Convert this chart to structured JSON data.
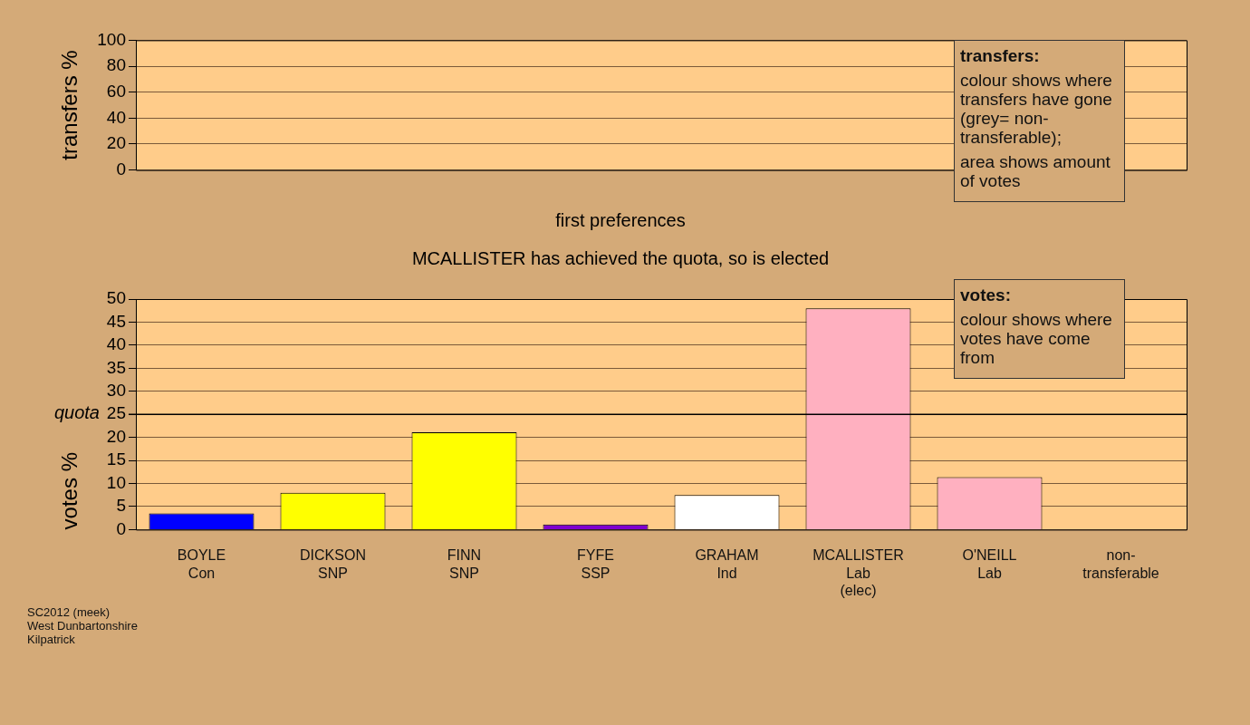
{
  "chart_data": [
    {
      "type": "bar",
      "ylabel": "transfers %",
      "categories": [
        null,
        null,
        null,
        null,
        null,
        null,
        null,
        null
      ],
      "values": [
        null,
        null,
        null,
        null,
        null,
        null,
        null,
        null
      ],
      "ylim": [
        0,
        100
      ],
      "yticks": [
        0,
        20,
        40,
        60,
        80,
        100
      ],
      "grid": "y",
      "tick_labels": "y",
      "annotations": [
        "transfers:\ncolour shows where transfers have gone (grey= non-transferable);\narea shows amount of votes"
      ]
    },
    {
      "type": "bar",
      "title": "first preferences",
      "subtitle": "MCALLISTER has achieved the quota, so is elected",
      "ylabel": "votes %",
      "categories": [
        "BOYLE\nCon",
        "DICKSON\nSNP",
        "FINN\nSNP",
        "FYFE\nSSP",
        "GRAHAM\nInd",
        "MCALLISTER\nLab\n(elec)",
        "O'NEILL\nLab",
        "non-\ntransferable"
      ],
      "values": [
        3.5,
        8.0,
        21.1,
        1.1,
        7.5,
        48.0,
        11.4,
        0
      ],
      "colors": [
        "#0000ff",
        "#ffff00",
        "#ffff00",
        "#8000d0",
        "#ffffff",
        "#ffb0c0",
        "#ffb0c0",
        "#bebebe"
      ],
      "ylim": [
        0,
        50
      ],
      "yticks": [
        0,
        5,
        10,
        15,
        20,
        25,
        30,
        35,
        40,
        45,
        50
      ],
      "grid": "y",
      "ref_lines": [
        {
          "axis": "y",
          "value": 25,
          "label": "quota"
        }
      ],
      "annotations": [
        "votes:\ncolour shows where votes have come from",
        "SC2012 (meek)\nWest Dunbartonshire\nKilpatrick"
      ]
    }
  ]
}
